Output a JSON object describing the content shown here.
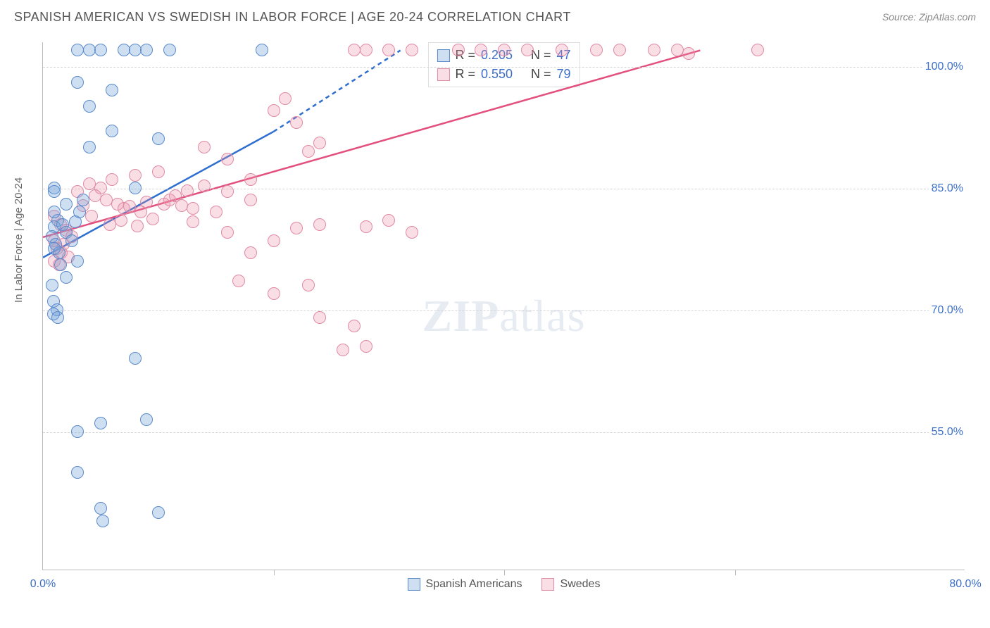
{
  "header": {
    "title": "SPANISH AMERICAN VS SWEDISH IN LABOR FORCE | AGE 20-24 CORRELATION CHART",
    "source": "Source: ZipAtlas.com"
  },
  "chart": {
    "type": "scatter",
    "y_axis_label": "In Labor Force | Age 20-24",
    "xlim": [
      0,
      80
    ],
    "ylim": [
      38,
      103
    ],
    "x_ticks": [
      0,
      20,
      40,
      60,
      80
    ],
    "x_tick_labels": [
      "0.0%",
      "",
      "",
      "",
      "80.0%"
    ],
    "y_ticks": [
      55,
      70,
      85,
      100
    ],
    "y_tick_labels": [
      "55.0%",
      "70.0%",
      "85.0%",
      "100.0%"
    ],
    "background_color": "#ffffff",
    "grid_color": "#d5d5d5",
    "axis_color": "#bbbbbb",
    "tick_label_color": "#3b6fc9",
    "marker_radius": 9,
    "series": {
      "a": {
        "label": "Spanish Americans",
        "fill": "rgba(117,162,219,0.35)",
        "stroke": "#5a8acb",
        "R": "0.205",
        "N": "47",
        "trend": {
          "x1": 0,
          "y1": 76.5,
          "x2": 20,
          "y2": 92,
          "x2_dash": 31,
          "y2_dash": 102,
          "color": "#2f6fd0"
        },
        "points": [
          [
            3,
            102
          ],
          [
            4,
            102
          ],
          [
            5,
            102
          ],
          [
            7,
            102
          ],
          [
            8,
            102
          ],
          [
            9,
            102
          ],
          [
            11,
            102
          ],
          [
            19,
            102
          ],
          [
            3,
            98
          ],
          [
            6,
            97
          ],
          [
            4,
            95
          ],
          [
            10,
            91
          ],
          [
            6,
            92
          ],
          [
            4,
            90
          ],
          [
            8,
            85
          ],
          [
            1,
            85
          ],
          [
            2,
            83
          ],
          [
            1.3,
            81
          ],
          [
            1,
            82
          ],
          [
            1,
            84.5
          ],
          [
            3.5,
            83.5
          ],
          [
            1,
            80.2
          ],
          [
            1.7,
            80.5
          ],
          [
            0.8,
            79
          ],
          [
            1.1,
            78
          ],
          [
            3,
            76
          ],
          [
            1.4,
            77
          ],
          [
            0.8,
            73
          ],
          [
            0.9,
            71
          ],
          [
            1.2,
            70
          ],
          [
            0.9,
            69.5
          ],
          [
            1.3,
            69
          ],
          [
            8,
            64
          ],
          [
            5,
            56
          ],
          [
            3,
            55
          ],
          [
            9,
            56.5
          ],
          [
            3,
            50
          ],
          [
            10,
            45
          ],
          [
            5,
            45.5
          ],
          [
            5.2,
            44
          ],
          [
            1,
            77.5
          ],
          [
            1.5,
            75.5
          ],
          [
            2,
            74
          ],
          [
            2,
            79.5
          ],
          [
            2.5,
            78.5
          ],
          [
            2.8,
            80.8
          ],
          [
            3.2,
            82
          ]
        ]
      },
      "b": {
        "label": "Swedes",
        "fill": "rgba(235,145,170,0.30)",
        "stroke": "#e08aa5",
        "R": "0.550",
        "N": "79",
        "trend": {
          "x1": 0,
          "y1": 79,
          "x2": 57,
          "y2": 102,
          "color": "#e3507e"
        },
        "points": [
          [
            27,
            102
          ],
          [
            28,
            102
          ],
          [
            30,
            102
          ],
          [
            32,
            102
          ],
          [
            36,
            102
          ],
          [
            38,
            102
          ],
          [
            40,
            102
          ],
          [
            42,
            102
          ],
          [
            45,
            102
          ],
          [
            48,
            102
          ],
          [
            50,
            102
          ],
          [
            53,
            102
          ],
          [
            55,
            102
          ],
          [
            56,
            101.5
          ],
          [
            62,
            102
          ],
          [
            21,
            96
          ],
          [
            20,
            94.5
          ],
          [
            22,
            93
          ],
          [
            24,
            90.5
          ],
          [
            23,
            89.5
          ],
          [
            14,
            90
          ],
          [
            16,
            88.5
          ],
          [
            10,
            87
          ],
          [
            8,
            86.5
          ],
          [
            6,
            86
          ],
          [
            4,
            85.5
          ],
          [
            5,
            85
          ],
          [
            3,
            84.5
          ],
          [
            4.5,
            84
          ],
          [
            5.5,
            83.5
          ],
          [
            6.5,
            83
          ],
          [
            7,
            82.5
          ],
          [
            7.5,
            82.7
          ],
          [
            8.5,
            82
          ],
          [
            9,
            83.2
          ],
          [
            13,
            82.5
          ],
          [
            15,
            82
          ],
          [
            12,
            82.8
          ],
          [
            1,
            81.5
          ],
          [
            1.5,
            80.5
          ],
          [
            2,
            79.8
          ],
          [
            2.5,
            79
          ],
          [
            1,
            78.5
          ],
          [
            1.8,
            78
          ],
          [
            1.2,
            77.5
          ],
          [
            1.6,
            77
          ],
          [
            2.2,
            76.5
          ],
          [
            1,
            76
          ],
          [
            1.4,
            75.5
          ],
          [
            22,
            80
          ],
          [
            24,
            80.5
          ],
          [
            28,
            80.2
          ],
          [
            30,
            81
          ],
          [
            32,
            79.5
          ],
          [
            18,
            77
          ],
          [
            20,
            78.5
          ],
          [
            16,
            79.5
          ],
          [
            13,
            80.8
          ],
          [
            11,
            83.5
          ],
          [
            16,
            84.5
          ],
          [
            18,
            83.5
          ],
          [
            24,
            69
          ],
          [
            27,
            68
          ],
          [
            28,
            65.5
          ],
          [
            26,
            65
          ],
          [
            20,
            72
          ],
          [
            17,
            73.5
          ],
          [
            23,
            73
          ],
          [
            3.5,
            82.8
          ],
          [
            4.2,
            81.5
          ],
          [
            5.8,
            80.5
          ],
          [
            6.8,
            81
          ],
          [
            8.2,
            80.3
          ],
          [
            9.5,
            81.2
          ],
          [
            10.5,
            83
          ],
          [
            11.5,
            84
          ],
          [
            12.5,
            84.6
          ],
          [
            14,
            85.2
          ],
          [
            18,
            86
          ]
        ]
      }
    },
    "legend_top": {
      "r_label": "R =",
      "n_label": "N ="
    },
    "legend_bottom": {
      "a": "Spanish Americans",
      "b": "Swedes"
    },
    "watermark": "ZIPatlas"
  }
}
